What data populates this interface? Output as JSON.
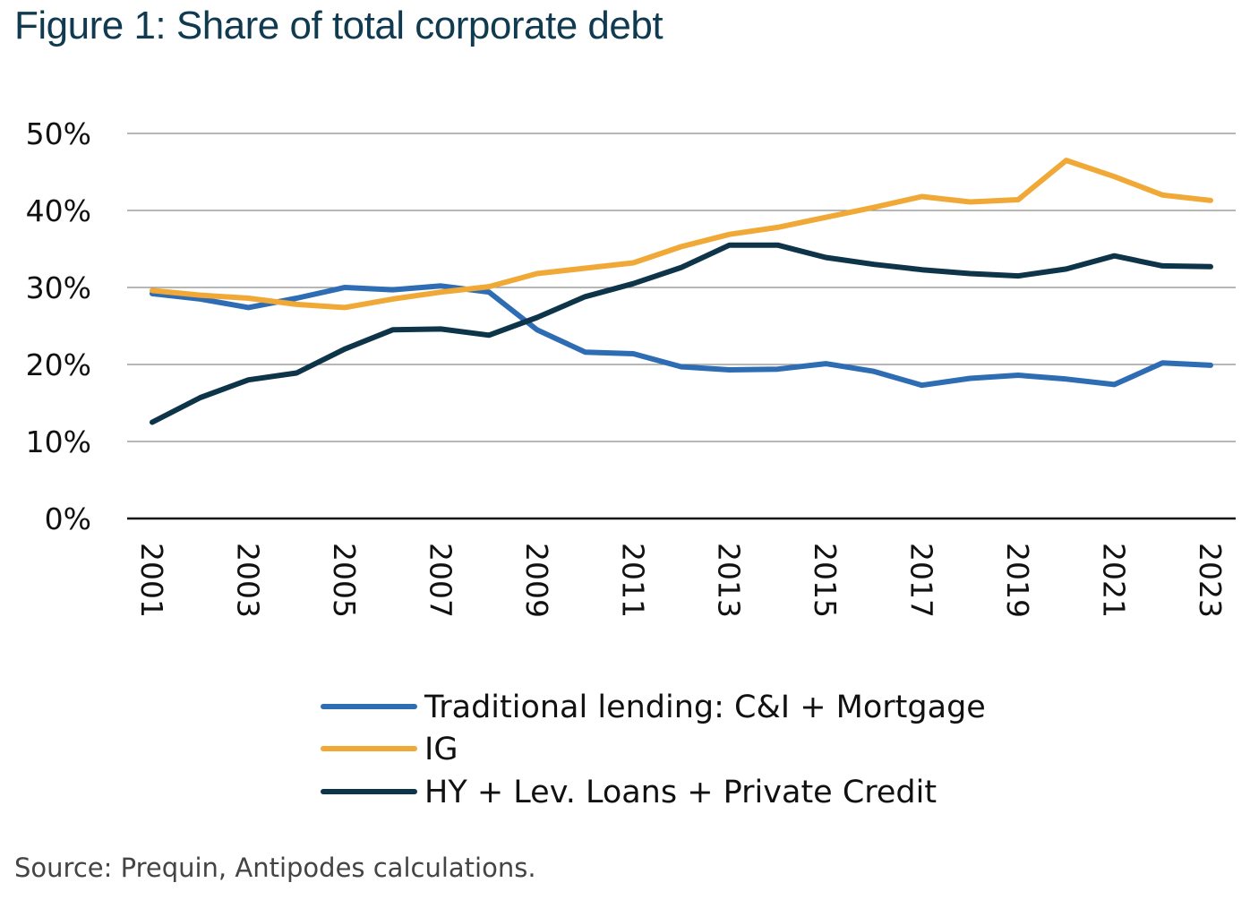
{
  "header": {
    "title": "Figure 1: Share of total corporate debt"
  },
  "footer": {
    "source": "Source: Prequin, Antipodes calculations."
  },
  "chart_data": {
    "type": "line",
    "title": "Figure 1: Share of total corporate debt",
    "xlabel": "",
    "ylabel": "",
    "x": [
      2001,
      2002,
      2003,
      2004,
      2005,
      2006,
      2007,
      2008,
      2009,
      2010,
      2011,
      2012,
      2013,
      2014,
      2015,
      2016,
      2017,
      2018,
      2019,
      2020,
      2021,
      2022,
      2023
    ],
    "x_tick_labels": [
      "2001",
      "2003",
      "2005",
      "2007",
      "2009",
      "2011",
      "2013",
      "2015",
      "2017",
      "2019",
      "2021",
      "2023"
    ],
    "ylim": [
      0,
      0.5
    ],
    "y_ticks": [
      0,
      0.1,
      0.2,
      0.3,
      0.4,
      0.5
    ],
    "y_tick_labels": [
      "0%",
      "10%",
      "20%",
      "30%",
      "40%",
      "50%"
    ],
    "grid": "horizontal",
    "legend_position": "bottom",
    "series": [
      {
        "name": "Traditional lending: C&I + Mortgage",
        "color": "#2e6db4",
        "values": [
          0.292,
          0.285,
          0.274,
          0.286,
          0.3,
          0.297,
          0.302,
          0.294,
          0.245,
          0.216,
          0.214,
          0.197,
          0.193,
          0.194,
          0.201,
          0.191,
          0.173,
          0.182,
          0.186,
          0.181,
          0.174,
          0.202,
          0.199
        ]
      },
      {
        "name": "IG",
        "color": "#f0a937",
        "values": [
          0.296,
          0.29,
          0.286,
          0.278,
          0.274,
          0.285,
          0.294,
          0.301,
          0.318,
          0.325,
          0.332,
          0.353,
          0.369,
          0.378,
          0.391,
          0.404,
          0.418,
          0.411,
          0.414,
          0.465,
          0.444,
          0.42,
          0.413
        ]
      },
      {
        "name": "HY + Lev. Loans + Private Credit",
        "color": "#0d3448",
        "values": [
          0.125,
          0.157,
          0.18,
          0.189,
          0.22,
          0.245,
          0.246,
          0.238,
          0.261,
          0.288,
          0.305,
          0.326,
          0.355,
          0.355,
          0.339,
          0.33,
          0.323,
          0.318,
          0.315,
          0.324,
          0.341,
          0.328,
          0.327
        ]
      }
    ]
  }
}
